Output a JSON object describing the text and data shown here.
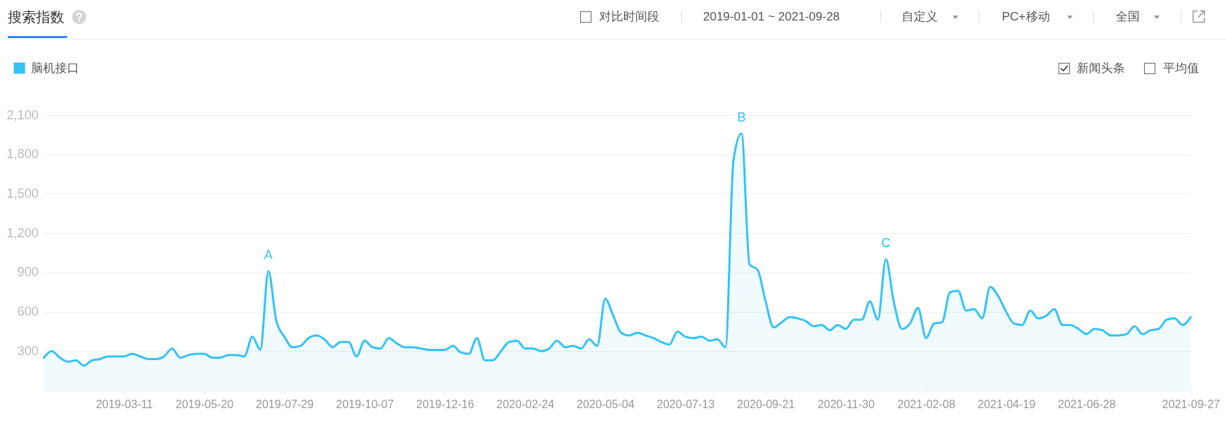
{
  "chart_data": {
    "type": "area",
    "title": "搜索指数",
    "annotations": [
      "对比时间段",
      "2019-01-01 ~ 2021-09-28",
      "自定义",
      "PC+移动",
      "全国",
      "新闻头条",
      "平均值",
      {
        "text": "A",
        "x": "2019-07-15",
        "y": 910
      },
      {
        "text": "B",
        "x": "2020-08-31",
        "y": 1960
      },
      {
        "text": "C",
        "x": "2021-01-04",
        "y": 1000
      }
    ],
    "x": [
      "2018-12-31",
      "2019-01-07",
      "2019-01-14",
      "2019-01-21",
      "2019-01-28",
      "2019-02-04",
      "2019-02-11",
      "2019-02-18",
      "2019-02-25",
      "2019-03-04",
      "2019-03-11",
      "2019-03-18",
      "2019-03-25",
      "2019-04-01",
      "2019-04-08",
      "2019-04-15",
      "2019-04-22",
      "2019-04-29",
      "2019-05-06",
      "2019-05-13",
      "2019-05-20",
      "2019-05-27",
      "2019-06-03",
      "2019-06-10",
      "2019-06-17",
      "2019-06-24",
      "2019-07-01",
      "2019-07-08",
      "2019-07-15",
      "2019-07-22",
      "2019-07-29",
      "2019-08-05",
      "2019-08-12",
      "2019-08-19",
      "2019-08-26",
      "2019-09-02",
      "2019-09-09",
      "2019-09-16",
      "2019-09-23",
      "2019-09-30",
      "2019-10-07",
      "2019-10-14",
      "2019-10-21",
      "2019-10-28",
      "2019-11-04",
      "2019-11-11",
      "2019-11-18",
      "2019-11-25",
      "2019-12-02",
      "2019-12-09",
      "2019-12-16",
      "2019-12-23",
      "2019-12-30",
      "2020-01-06",
      "2020-01-13",
      "2020-01-20",
      "2020-01-27",
      "2020-02-03",
      "2020-02-10",
      "2020-02-17",
      "2020-02-24",
      "2020-03-02",
      "2020-03-09",
      "2020-03-16",
      "2020-03-23",
      "2020-03-30",
      "2020-04-06",
      "2020-04-13",
      "2020-04-20",
      "2020-04-27",
      "2020-05-04",
      "2020-05-11",
      "2020-05-18",
      "2020-05-25",
      "2020-06-01",
      "2020-06-08",
      "2020-06-15",
      "2020-06-22",
      "2020-06-29",
      "2020-07-06",
      "2020-07-13",
      "2020-07-20",
      "2020-07-27",
      "2020-08-03",
      "2020-08-10",
      "2020-08-17",
      "2020-08-24",
      "2020-08-31",
      "2020-09-07",
      "2020-09-14",
      "2020-09-21",
      "2020-09-28",
      "2020-10-05",
      "2020-10-12",
      "2020-10-19",
      "2020-10-26",
      "2020-11-02",
      "2020-11-09",
      "2020-11-16",
      "2020-11-23",
      "2020-11-30",
      "2020-12-07",
      "2020-12-14",
      "2020-12-21",
      "2020-12-28",
      "2021-01-04",
      "2021-01-11",
      "2021-01-18",
      "2021-01-25",
      "2021-02-01",
      "2021-02-08",
      "2021-02-15",
      "2021-02-22",
      "2021-03-01",
      "2021-03-08",
      "2021-03-15",
      "2021-03-22",
      "2021-03-29",
      "2021-04-05",
      "2021-04-12",
      "2021-04-19",
      "2021-04-26",
      "2021-05-03",
      "2021-05-10",
      "2021-05-17",
      "2021-05-24",
      "2021-05-31",
      "2021-06-07",
      "2021-06-14",
      "2021-06-21",
      "2021-06-28",
      "2021-07-05",
      "2021-07-12",
      "2021-07-19",
      "2021-07-26",
      "2021-08-02",
      "2021-08-09",
      "2021-08-16",
      "2021-08-23",
      "2021-08-30",
      "2021-09-06",
      "2021-09-13",
      "2021-09-20",
      "2021-09-27"
    ],
    "series": [
      {
        "name": "脑机接口",
        "color": "#35c2f4",
        "values": [
          250,
          300,
          250,
          220,
          230,
          190,
          230,
          240,
          260,
          260,
          260,
          280,
          260,
          240,
          240,
          260,
          320,
          250,
          270,
          280,
          280,
          250,
          250,
          270,
          270,
          260,
          410,
          310,
          910,
          530,
          410,
          330,
          340,
          400,
          420,
          390,
          330,
          370,
          370,
          260,
          380,
          330,
          320,
          400,
          360,
          330,
          330,
          320,
          310,
          310,
          310,
          340,
          290,
          280,
          400,
          230,
          230,
          300,
          370,
          380,
          320,
          320,
          300,
          320,
          380,
          330,
          340,
          320,
          390,
          340,
          700,
          570,
          440,
          420,
          440,
          420,
          400,
          370,
          350,
          450,
          410,
          400,
          410,
          380,
          390,
          330,
          1760,
          1960,
          960,
          920,
          680,
          480,
          520,
          560,
          550,
          530,
          490,
          500,
          460,
          500,
          470,
          540,
          540,
          680,
          540,
          1000,
          670,
          470,
          510,
          630,
          400,
          510,
          520,
          750,
          760,
          610,
          620,
          550,
          790,
          720,
          600,
          510,
          500,
          610,
          550,
          570,
          620,
          500,
          500,
          470,
          430,
          470,
          460,
          420,
          420,
          430,
          490,
          430,
          460,
          470,
          540,
          550,
          500,
          560
        ]
      }
    ],
    "xlim": [
      "2018-12-31",
      "2021-09-27"
    ],
    "xticks": [
      "2019-03-11",
      "2019-05-20",
      "2019-07-29",
      "2019-10-07",
      "2019-12-16",
      "2020-02-24",
      "2020-05-04",
      "2020-07-13",
      "2020-09-21",
      "2020-11-30",
      "2021-02-08",
      "2021-04-19",
      "2021-06-28",
      "2021-09-27"
    ],
    "ylim": [
      0,
      2100
    ],
    "yticks": [
      {
        "value": 0,
        "label": null
      },
      300,
      600,
      900,
      {
        "value": 1200,
        "label": "1,200"
      },
      {
        "value": 1500,
        "label": "1,500"
      },
      {
        "value": 1800,
        "label": "1,800"
      },
      {
        "value": 2100,
        "label": "2,100"
      }
    ],
    "grid": "y",
    "legend": "top left"
  }
}
